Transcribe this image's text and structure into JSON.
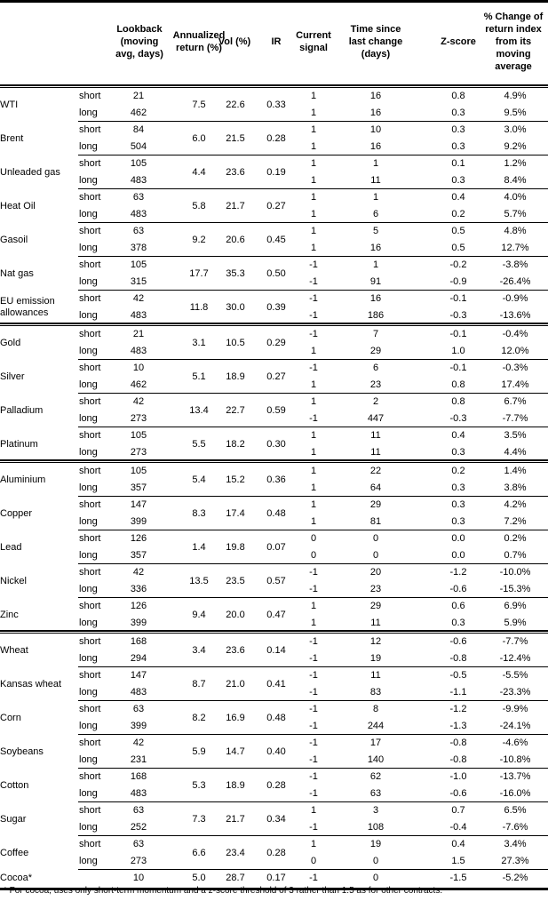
{
  "headers": {
    "lookback": "Lookback (moving avg, days)",
    "annualized": "Annualized return (%)",
    "vol": "Vol (%)",
    "ir": "IR",
    "signal": "Current signal",
    "time": "Time since last change (days)",
    "zscore": "Z-score",
    "pct": "% Change of return index from its moving average"
  },
  "groups": [
    {
      "commodities": [
        {
          "name": "WTI",
          "ann": "7.5",
          "vol": "22.6",
          "ir": "0.33",
          "rows": [
            [
              "short",
              "21",
              "1",
              "16",
              "0.8",
              "4.9%"
            ],
            [
              "long",
              "462",
              "1",
              "16",
              "0.3",
              "9.5%"
            ]
          ]
        },
        {
          "name": "Brent",
          "ann": "6.0",
          "vol": "21.5",
          "ir": "0.28",
          "rows": [
            [
              "short",
              "84",
              "1",
              "10",
              "0.3",
              "3.0%"
            ],
            [
              "long",
              "504",
              "1",
              "16",
              "0.3",
              "9.2%"
            ]
          ]
        },
        {
          "name": "Unleaded gas",
          "ann": "4.4",
          "vol": "23.6",
          "ir": "0.19",
          "rows": [
            [
              "short",
              "105",
              "1",
              "1",
              "0.1",
              "1.2%"
            ],
            [
              "long",
              "483",
              "1",
              "11",
              "0.3",
              "8.4%"
            ]
          ]
        },
        {
          "name": "Heat Oil",
          "ann": "5.8",
          "vol": "21.7",
          "ir": "0.27",
          "rows": [
            [
              "short",
              "63",
              "1",
              "1",
              "0.4",
              "4.0%"
            ],
            [
              "long",
              "483",
              "1",
              "6",
              "0.2",
              "5.7%"
            ]
          ]
        },
        {
          "name": "Gasoil",
          "ann": "9.2",
          "vol": "20.6",
          "ir": "0.45",
          "rows": [
            [
              "short",
              "63",
              "1",
              "5",
              "0.5",
              "4.8%"
            ],
            [
              "long",
              "378",
              "1",
              "16",
              "0.5",
              "12.7%"
            ]
          ]
        },
        {
          "name": "Nat gas",
          "ann": "17.7",
          "vol": "35.3",
          "ir": "0.50",
          "rows": [
            [
              "short",
              "105",
              "-1",
              "1",
              "-0.2",
              "-3.8%"
            ],
            [
              "long",
              "315",
              "-1",
              "91",
              "-0.9",
              "-26.4%"
            ]
          ]
        },
        {
          "name": "EU emission allowances",
          "ann": "11.8",
          "vol": "30.0",
          "ir": "0.39",
          "rows": [
            [
              "short",
              "42",
              "-1",
              "16",
              "-0.1",
              "-0.9%"
            ],
            [
              "long",
              "483",
              "-1",
              "186",
              "-0.3",
              "-13.6%"
            ]
          ]
        }
      ]
    },
    {
      "commodities": [
        {
          "name": "Gold",
          "ann": "3.1",
          "vol": "10.5",
          "ir": "0.29",
          "rows": [
            [
              "short",
              "21",
              "-1",
              "7",
              "-0.1",
              "-0.4%"
            ],
            [
              "long",
              "483",
              "1",
              "29",
              "1.0",
              "12.0%"
            ]
          ]
        },
        {
          "name": "Silver",
          "ann": "5.1",
          "vol": "18.9",
          "ir": "0.27",
          "rows": [
            [
              "short",
              "10",
              "-1",
              "6",
              "-0.1",
              "-0.3%"
            ],
            [
              "long",
              "462",
              "1",
              "23",
              "0.8",
              "17.4%"
            ]
          ]
        },
        {
          "name": "Palladium",
          "ann": "13.4",
          "vol": "22.7",
          "ir": "0.59",
          "rows": [
            [
              "short",
              "42",
              "1",
              "2",
              "0.8",
              "6.7%"
            ],
            [
              "long",
              "273",
              "-1",
              "447",
              "-0.3",
              "-7.7%"
            ]
          ]
        },
        {
          "name": "Platinum",
          "ann": "5.5",
          "vol": "18.2",
          "ir": "0.30",
          "rows": [
            [
              "short",
              "105",
              "1",
              "11",
              "0.4",
              "3.5%"
            ],
            [
              "long",
              "273",
              "1",
              "11",
              "0.3",
              "4.4%"
            ]
          ]
        }
      ]
    },
    {
      "commodities": [
        {
          "name": "Aluminium",
          "ann": "5.4",
          "vol": "15.2",
          "ir": "0.36",
          "rows": [
            [
              "short",
              "105",
              "1",
              "22",
              "0.2",
              "1.4%"
            ],
            [
              "long",
              "357",
              "1",
              "64",
              "0.3",
              "3.8%"
            ]
          ]
        },
        {
          "name": "Copper",
          "ann": "8.3",
          "vol": "17.4",
          "ir": "0.48",
          "rows": [
            [
              "short",
              "147",
              "1",
              "29",
              "0.3",
              "4.2%"
            ],
            [
              "long",
              "399",
              "1",
              "81",
              "0.3",
              "7.2%"
            ]
          ]
        },
        {
          "name": "Lead",
          "ann": "1.4",
          "vol": "19.8",
          "ir": "0.07",
          "rows": [
            [
              "short",
              "126",
              "0",
              "0",
              "0.0",
              "0.2%"
            ],
            [
              "long",
              "357",
              "0",
              "0",
              "0.0",
              "0.7%"
            ]
          ]
        },
        {
          "name": "Nickel",
          "ann": "13.5",
          "vol": "23.5",
          "ir": "0.57",
          "rows": [
            [
              "short",
              "42",
              "-1",
              "20",
              "-1.2",
              "-10.0%"
            ],
            [
              "long",
              "336",
              "-1",
              "23",
              "-0.6",
              "-15.3%"
            ]
          ]
        },
        {
          "name": "Zinc",
          "ann": "9.4",
          "vol": "20.0",
          "ir": "0.47",
          "rows": [
            [
              "short",
              "126",
              "1",
              "29",
              "0.6",
              "6.9%"
            ],
            [
              "long",
              "399",
              "1",
              "11",
              "0.3",
              "5.9%"
            ]
          ]
        }
      ]
    },
    {
      "commodities": [
        {
          "name": "Wheat",
          "ann": "3.4",
          "vol": "23.6",
          "ir": "0.14",
          "rows": [
            [
              "short",
              "168",
              "-1",
              "12",
              "-0.6",
              "-7.7%"
            ],
            [
              "long",
              "294",
              "-1",
              "19",
              "-0.8",
              "-12.4%"
            ]
          ]
        },
        {
          "name": "Kansas wheat",
          "ann": "8.7",
          "vol": "21.0",
          "ir": "0.41",
          "rows": [
            [
              "short",
              "147",
              "-1",
              "11",
              "-0.5",
              "-5.5%"
            ],
            [
              "long",
              "483",
              "-1",
              "83",
              "-1.1",
              "-23.3%"
            ]
          ]
        },
        {
          "name": "Corn",
          "ann": "8.2",
          "vol": "16.9",
          "ir": "0.48",
          "rows": [
            [
              "short",
              "63",
              "-1",
              "8",
              "-1.2",
              "-9.9%"
            ],
            [
              "long",
              "399",
              "-1",
              "244",
              "-1.3",
              "-24.1%"
            ]
          ]
        },
        {
          "name": "Soybeans",
          "ann": "5.9",
          "vol": "14.7",
          "ir": "0.40",
          "rows": [
            [
              "short",
              "42",
              "-1",
              "17",
              "-0.8",
              "-4.6%"
            ],
            [
              "long",
              "231",
              "-1",
              "140",
              "-0.8",
              "-10.8%"
            ]
          ]
        },
        {
          "name": "Cotton",
          "ann": "5.3",
          "vol": "18.9",
          "ir": "0.28",
          "rows": [
            [
              "short",
              "168",
              "-1",
              "62",
              "-1.0",
              "-13.7%"
            ],
            [
              "long",
              "483",
              "-1",
              "63",
              "-0.6",
              "-16.0%"
            ]
          ]
        },
        {
          "name": "Sugar",
          "ann": "7.3",
          "vol": "21.7",
          "ir": "0.34",
          "rows": [
            [
              "short",
              "63",
              "1",
              "3",
              "0.7",
              "6.5%"
            ],
            [
              "long",
              "252",
              "-1",
              "108",
              "-0.4",
              "-7.6%"
            ]
          ]
        },
        {
          "name": "Coffee",
          "ann": "6.6",
          "vol": "23.4",
          "ir": "0.28",
          "rows": [
            [
              "short",
              "63",
              "1",
              "19",
              "0.4",
              "3.4%"
            ],
            [
              "long",
              "273",
              "0",
              "0",
              "1.5",
              "27.3%"
            ]
          ]
        },
        {
          "name": "Cocoa*",
          "ann": "5.0",
          "vol": "28.7",
          "ir": "0.17",
          "rows": [
            [
              "",
              "10",
              "-1",
              "0",
              "-1.5",
              "-5.2%"
            ]
          ]
        }
      ]
    }
  ],
  "footnote": "* For cocoa, uses only short-term momentum and a z-score threshold of 3 rather than 1.5 as for other contracts."
}
